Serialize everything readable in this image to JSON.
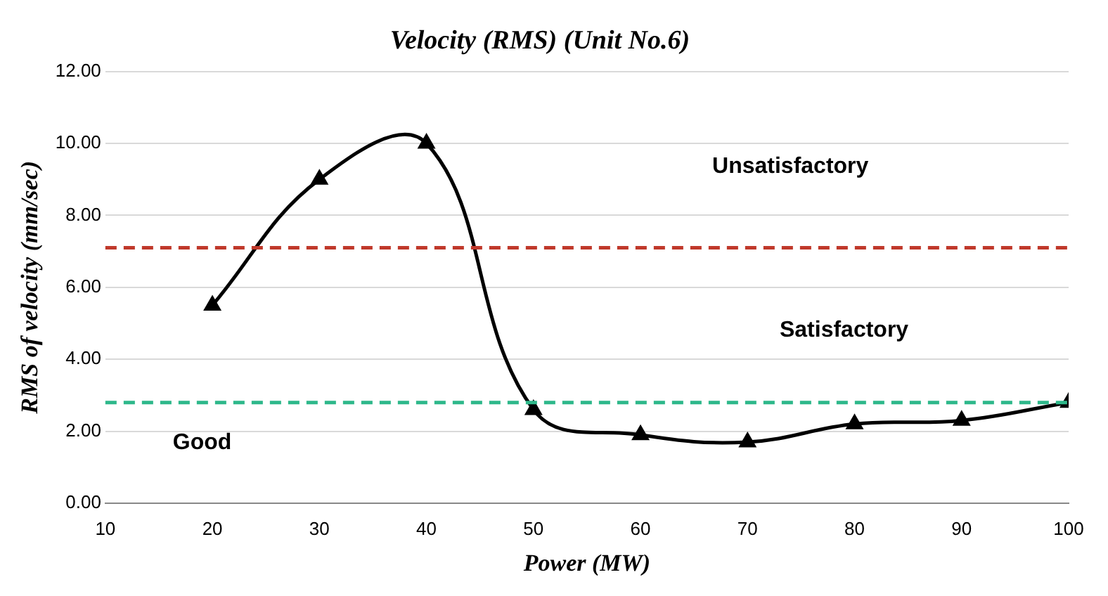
{
  "chart_data": {
    "type": "line",
    "title": "Velocity (RMS) (Unit No.6)",
    "xlabel": "Power (MW)",
    "ylabel": "RMS of velocity (mm/sec)",
    "x": [
      20,
      30,
      40,
      50,
      60,
      70,
      80,
      90,
      100
    ],
    "series": [
      {
        "color": "#000000",
        "values": [
          5.5,
          9.0,
          10.0,
          2.6,
          1.9,
          1.7,
          2.2,
          2.3,
          2.8
        ]
      }
    ],
    "xlim": [
      10,
      100
    ],
    "xticks": [
      10,
      20,
      30,
      40,
      50,
      60,
      70,
      80,
      90,
      100
    ],
    "ylim": [
      0,
      12
    ],
    "yticks": [
      {
        "value": 0,
        "label": "0.00"
      },
      {
        "value": 2,
        "label": "2.00"
      },
      {
        "value": 4,
        "label": "4.00"
      },
      {
        "value": 6,
        "label": "6.00"
      },
      {
        "value": 8,
        "label": "8.00"
      },
      {
        "value": 10,
        "label": "10.00"
      },
      {
        "value": 12,
        "label": "12.00"
      }
    ],
    "ref_lines": [
      {
        "axis": "y",
        "value": 7.1,
        "color": "#c0392b",
        "line_style": "dashed"
      },
      {
        "axis": "y",
        "value": 2.8,
        "color": "#2eb88a",
        "line_style": "dashed"
      }
    ],
    "annotations": [
      "Unsatisfactory",
      "Satisfactory",
      "Good"
    ],
    "grid": "y",
    "marker": "triangle",
    "line_style": "solid"
  }
}
